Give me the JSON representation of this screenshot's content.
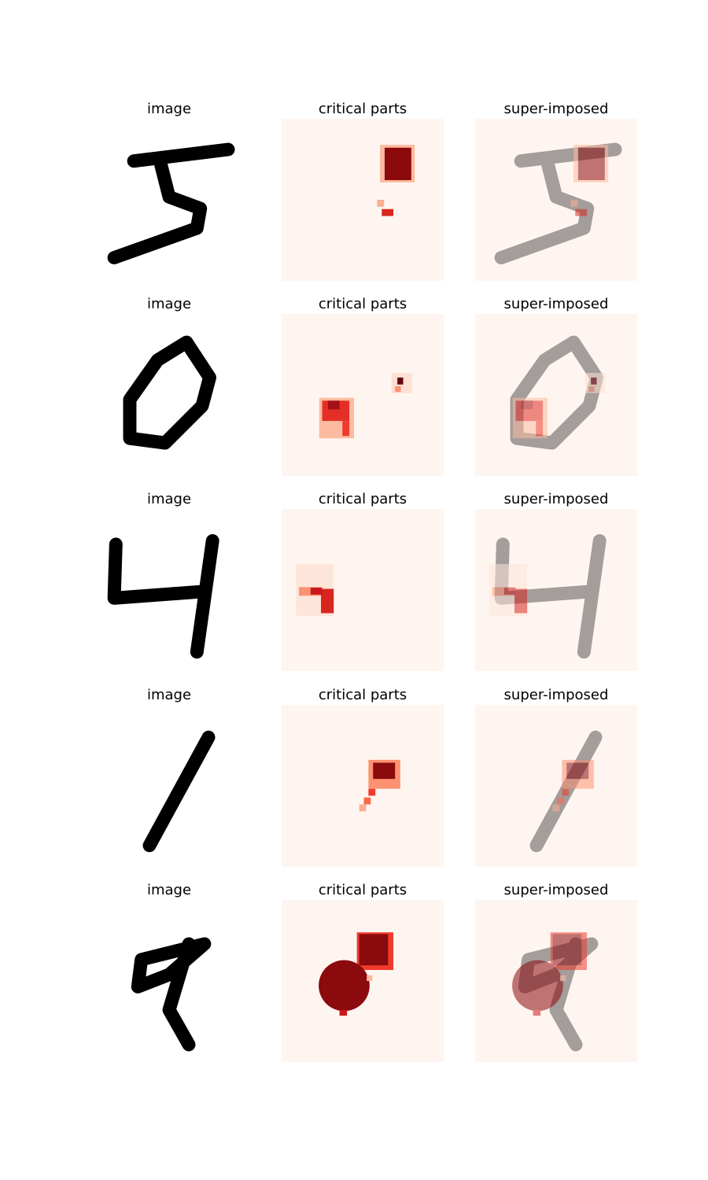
{
  "grid": [
    [
      "image",
      "critical parts",
      "super-imposed"
    ],
    [
      "image",
      "critical parts",
      "super-imposed"
    ],
    [
      "image",
      "critical parts",
      "super-imposed"
    ],
    [
      "image",
      "critical parts",
      "super-imposed"
    ],
    [
      "image",
      "critical parts",
      "super-imposed"
    ]
  ]
}
